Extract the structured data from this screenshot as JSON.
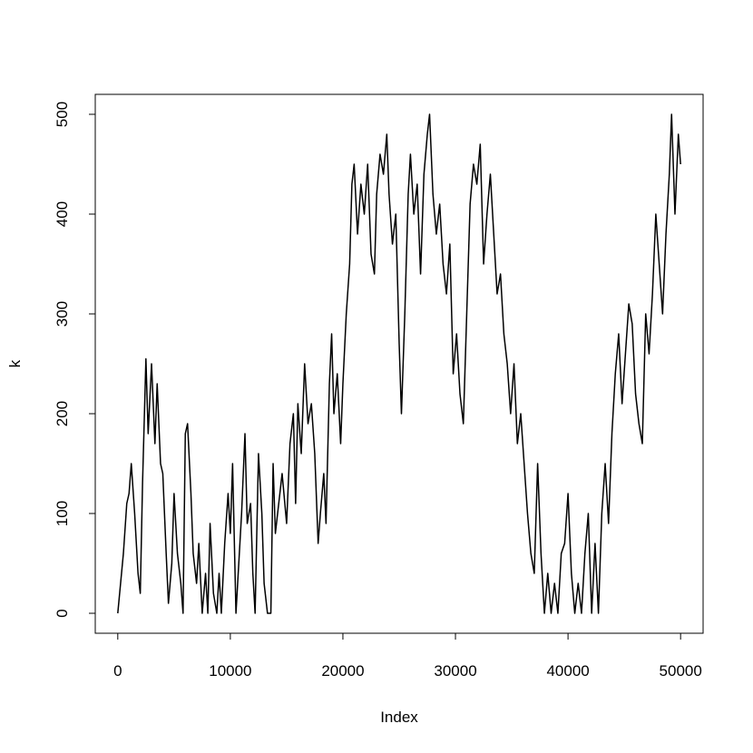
{
  "chart_data": {
    "type": "line",
    "x_label": "Index",
    "y_label": "k",
    "x": [
      0,
      500,
      800,
      1000,
      1200,
      1500,
      1800,
      2000,
      2200,
      2500,
      2700,
      3000,
      3300,
      3500,
      3800,
      4000,
      4300,
      4500,
      4800,
      5000,
      5300,
      5600,
      5800,
      6000,
      6200,
      6500,
      6700,
      7000,
      7200,
      7500,
      7800,
      8000,
      8200,
      8500,
      8800,
      9000,
      9200,
      9500,
      9800,
      10000,
      10200,
      10500,
      10800,
      11000,
      11300,
      11500,
      11800,
      12000,
      12200,
      12500,
      12800,
      13000,
      13300,
      13600,
      13800,
      14000,
      14300,
      14600,
      15000,
      15300,
      15600,
      15800,
      16000,
      16300,
      16600,
      16900,
      17200,
      17500,
      17800,
      18000,
      18300,
      18500,
      18800,
      19000,
      19200,
      19500,
      19800,
      20000,
      20300,
      20600,
      20800,
      21000,
      21300,
      21600,
      21900,
      22200,
      22500,
      22800,
      23000,
      23300,
      23600,
      23900,
      24100,
      24400,
      24700,
      25000,
      25200,
      25500,
      25800,
      26000,
      26300,
      26600,
      26900,
      27200,
      27500,
      27700,
      28000,
      28300,
      28600,
      28900,
      29200,
      29500,
      29800,
      30100,
      30400,
      30700,
      31000,
      31300,
      31600,
      31900,
      32200,
      32500,
      32800,
      33100,
      33400,
      33700,
      34000,
      34300,
      34600,
      34900,
      35200,
      35500,
      35800,
      36100,
      36400,
      36700,
      37000,
      37300,
      37600,
      37900,
      38200,
      38500,
      38800,
      39100,
      39400,
      39700,
      40000,
      40300,
      40600,
      40900,
      41200,
      41500,
      41800,
      42100,
      42400,
      42700,
      43000,
      43300,
      43600,
      43900,
      44200,
      44500,
      44800,
      45100,
      45400,
      45700,
      46000,
      46300,
      46600,
      46900,
      47200,
      47500,
      47800,
      48100,
      48400,
      48700,
      49000,
      49200,
      49500,
      49800,
      50000
    ],
    "series": [
      {
        "name": "k",
        "color": "#000000",
        "values": [
          0,
          60,
          110,
          120,
          150,
          100,
          40,
          20,
          130,
          255,
          180,
          250,
          170,
          230,
          150,
          140,
          60,
          10,
          50,
          120,
          60,
          30,
          0,
          180,
          190,
          120,
          60,
          30,
          70,
          0,
          40,
          0,
          90,
          20,
          0,
          40,
          0,
          70,
          120,
          80,
          150,
          0,
          60,
          100,
          180,
          90,
          110,
          40,
          0,
          160,
          100,
          30,
          0,
          0,
          150,
          80,
          110,
          140,
          90,
          170,
          200,
          110,
          210,
          160,
          250,
          190,
          210,
          160,
          70,
          100,
          140,
          90,
          230,
          280,
          200,
          240,
          170,
          230,
          300,
          350,
          430,
          450,
          380,
          430,
          400,
          450,
          360,
          340,
          420,
          460,
          440,
          480,
          420,
          370,
          400,
          270,
          200,
          300,
          420,
          460,
          400,
          430,
          340,
          440,
          480,
          500,
          420,
          380,
          410,
          350,
          320,
          370,
          240,
          280,
          220,
          190,
          300,
          410,
          450,
          430,
          470,
          350,
          400,
          440,
          380,
          320,
          340,
          280,
          250,
          200,
          250,
          170,
          200,
          150,
          100,
          60,
          40,
          150,
          60,
          0,
          40,
          0,
          30,
          0,
          60,
          70,
          120,
          40,
          0,
          30,
          0,
          60,
          100,
          0,
          70,
          0,
          100,
          150,
          90,
          180,
          240,
          280,
          210,
          260,
          310,
          290,
          220,
          190,
          170,
          300,
          260,
          320,
          400,
          350,
          300,
          380,
          440,
          500,
          400,
          480,
          450
        ]
      }
    ],
    "xlim": [
      -2000,
      52000
    ],
    "ylim": [
      -20,
      520
    ],
    "xticks": [
      0,
      10000,
      20000,
      30000,
      40000,
      50000
    ],
    "yticks": [
      0,
      100,
      200,
      300,
      400,
      500
    ]
  }
}
